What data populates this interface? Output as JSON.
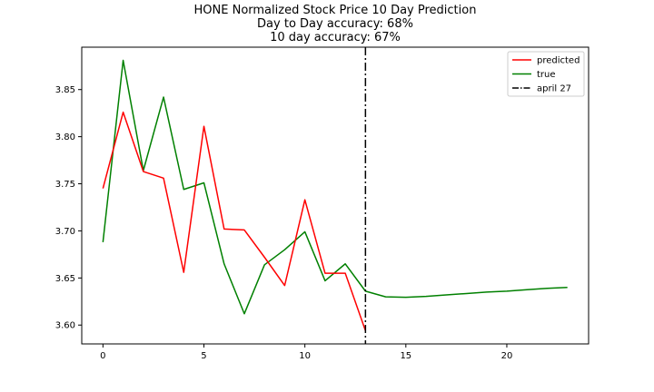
{
  "chart_data": {
    "type": "line",
    "title": "HONE Normalized Stock Price 10 Day Prediction",
    "subtitle_lines": [
      "Day to Day accuracy: 68%",
      "10 day accuracy: 67%"
    ],
    "xlabel": "",
    "ylabel": "",
    "xlim": [
      -1.05,
      24.05
    ],
    "ylim": [
      3.58,
      3.895
    ],
    "xticks": [
      0,
      5,
      10,
      15,
      20
    ],
    "yticks": [
      3.6,
      3.65,
      3.7,
      3.75,
      3.8,
      3.85
    ],
    "ytick_labels": [
      "3.60",
      "3.65",
      "3.70",
      "3.75",
      "3.80",
      "3.85"
    ],
    "grid": false,
    "legend_position": "top-right",
    "series": [
      {
        "name": "predicted",
        "color": "#ff0000",
        "x": [
          0,
          1,
          2,
          3,
          4,
          5,
          6,
          7,
          8,
          9,
          10,
          11,
          12,
          13
        ],
        "y": [
          3.745,
          3.826,
          3.763,
          3.756,
          3.656,
          3.811,
          3.702,
          3.701,
          3.672,
          3.642,
          3.733,
          3.655,
          3.655,
          3.594
        ]
      },
      {
        "name": "true",
        "color": "#008000",
        "x": [
          0,
          1,
          2,
          3,
          4,
          5,
          6,
          7,
          8,
          9,
          10,
          11,
          12,
          13,
          14,
          15,
          16,
          17,
          18,
          19,
          20,
          21,
          22,
          23
        ],
        "y": [
          3.688,
          3.881,
          3.764,
          3.842,
          3.744,
          3.751,
          3.665,
          3.612,
          3.664,
          3.68,
          3.699,
          3.647,
          3.665,
          3.636,
          3.63,
          3.6295,
          3.6305,
          3.632,
          3.6335,
          3.635,
          3.636,
          3.6375,
          3.639,
          3.64
        ]
      }
    ],
    "vline": {
      "name": "april 27",
      "x": 13,
      "color": "#000000",
      "style": "dashdot"
    }
  }
}
